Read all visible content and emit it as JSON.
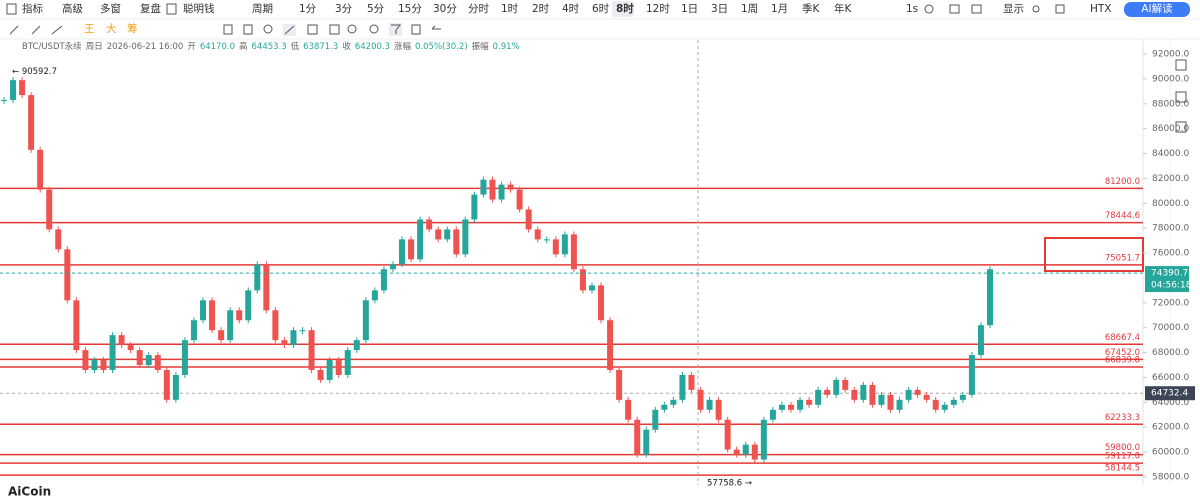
{
  "toolbar": {
    "left": [
      "指标",
      "高级",
      "多窗",
      "复盘",
      "聪明钱",
      "周期"
    ],
    "periods": [
      "1分",
      "3分",
      "5分",
      "15分",
      "30分",
      "分时",
      "1时",
      "2时",
      "4时",
      "6时",
      "8时",
      "12时",
      "1日",
      "3日",
      "1周",
      "1月",
      "季K",
      "年K"
    ],
    "selected": "8时",
    "right": [
      "1s",
      "显示",
      "HTX"
    ],
    "ai_button": "AI解读",
    "tools": [
      "王",
      "大",
      "筹"
    ]
  },
  "info": [
    "BTC/USDT永续",
    "周日",
    "2026-06-21 16:00",
    "开",
    "64170.0",
    "高",
    "64453.3",
    "低",
    "63871.3",
    "收",
    "64200.3",
    "涨幅",
    "0.05%(30.2)",
    "振幅",
    "0.91%"
  ],
  "logo": "AiCoin",
  "chart_data": {
    "type": "candlestick",
    "up_color": "#26a69a",
    "down_color": "#ef5350",
    "values": [
      88300,
      89900,
      88700,
      84300,
      81100,
      77900,
      76300,
      72200,
      68200,
      66600,
      67400,
      66600,
      69400,
      68600,
      68200,
      67000,
      67800,
      66600,
      64200,
      66200,
      69000,
      70600,
      72200,
      69800,
      69000,
      71400,
      70600,
      73000,
      75100,
      71400,
      69000,
      68600,
      69800,
      69800,
      66600,
      65800,
      67400,
      66200,
      68200,
      69000,
      72200,
      73000,
      74700,
      75100,
      77100,
      75500,
      78700,
      77900,
      77100,
      77900,
      75900,
      78700,
      80700,
      81900,
      80300,
      81500,
      81100,
      79500,
      77900,
      77100,
      77100,
      75900,
      77500,
      74700,
      73000,
      73400,
      70600,
      66600,
      64200,
      62600,
      59800,
      61800,
      63400,
      63800,
      64200,
      66200,
      65000,
      63400,
      64200,
      62600,
      60200,
      59800,
      60600,
      59400,
      62600,
      63400,
      63800,
      63400,
      64200,
      63800,
      65000,
      64600,
      65800,
      65000,
      64200,
      65400,
      63800,
      64600,
      63400,
      64200,
      65000,
      64600,
      64200,
      63400,
      63800,
      64200,
      64600,
      67800,
      70200,
      74700
    ],
    "ylim": [
      57700,
      92300
    ],
    "yticks": [
      {
        "value": 58000,
        "label": "58000.0"
      },
      {
        "value": 60000,
        "label": "60000.0"
      },
      {
        "value": 62000,
        "label": "62000.0"
      },
      {
        "value": 64000,
        "label": "64000.0"
      },
      {
        "value": 66000,
        "label": "66000.0"
      },
      {
        "value": 68000,
        "label": "68000.0"
      },
      {
        "value": 70000,
        "label": "70000.0"
      },
      {
        "value": 72000,
        "label": "72000.0"
      },
      {
        "value": 74000,
        "label": "74000.0"
      },
      {
        "value": 76000,
        "label": "76000.0"
      },
      {
        "value": 78000,
        "label": "78000.0"
      },
      {
        "value": 80000,
        "label": "80000.0"
      },
      {
        "value": 82000,
        "label": "82000.0"
      },
      {
        "value": 84000,
        "label": "84000.0"
      },
      {
        "value": 86000,
        "label": "86000.0"
      },
      {
        "value": 88000,
        "label": "88000.0"
      },
      {
        "value": 90000,
        "label": "90000.0"
      },
      {
        "value": 92000,
        "label": "92000.0"
      }
    ],
    "levels": [
      {
        "value": 81200,
        "label": "81200.0"
      },
      {
        "value": 78444.6,
        "label": "78444.6"
      },
      {
        "value": 75051.7,
        "label": "75051.7"
      },
      {
        "value": 68667.4,
        "label": "68667.4"
      },
      {
        "value": 67452,
        "label": "67452.0"
      },
      {
        "value": 66839.8,
        "label": "66839.8"
      },
      {
        "value": 62233.3,
        "label": "62233.3"
      },
      {
        "value": 59800,
        "label": "59800.0"
      },
      {
        "value": 59117,
        "label": "59117.0"
      },
      {
        "value": 58144.5,
        "label": "58144.5"
      }
    ],
    "level_color": "#e53935",
    "last_price": 74390.7,
    "countdown": "04:56:18",
    "crosshair_price": 64732.4,
    "high_mark": {
      "value": 90592.7,
      "label": "← 90592.7"
    },
    "low_mark": {
      "value": 57758.6,
      "label": "57758.6 →"
    }
  }
}
